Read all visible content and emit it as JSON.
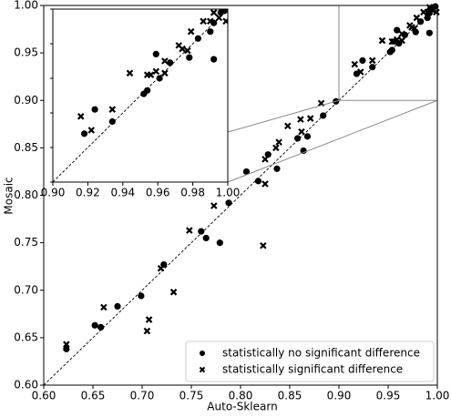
{
  "chart_data": {
    "type": "scatter",
    "x_label": "Auto-Sklearn",
    "y_label": "Mosaic",
    "xlim": [
      0.6,
      1.0
    ],
    "ylim": [
      0.6,
      1.0
    ],
    "xticks": [
      {
        "value": 0.6,
        "label": "0.60"
      },
      {
        "value": 0.65,
        "label": "0.65"
      },
      {
        "value": 0.7,
        "label": "0.70"
      },
      {
        "value": 0.75,
        "label": "0.75"
      },
      {
        "value": 0.8,
        "label": "0.80"
      },
      {
        "value": 0.85,
        "label": "0.85"
      },
      {
        "value": 0.9,
        "label": "0.90"
      },
      {
        "value": 0.95,
        "label": "0.95"
      },
      {
        "value": 1.0,
        "label": "1.00"
      }
    ],
    "yticks": [
      {
        "value": 0.6,
        "label": "0.60"
      },
      {
        "value": 0.65,
        "label": "0.65"
      },
      {
        "value": 0.7,
        "label": "0.70"
      },
      {
        "value": 0.75,
        "label": "0.75"
      },
      {
        "value": 0.8,
        "label": "0.80"
      },
      {
        "value": 0.85,
        "label": "0.85"
      },
      {
        "value": 0.9,
        "label": "0.90"
      },
      {
        "value": 0.95,
        "label": "0.95"
      },
      {
        "value": 1.0,
        "label": "1.00"
      }
    ],
    "legend": "lower right",
    "series": [
      {
        "name": "statistically no significant difference",
        "marker": "circle",
        "color": "#000000",
        "x": [
          0.623,
          0.652,
          0.658,
          0.675,
          0.699,
          0.722,
          0.76,
          0.765,
          0.779,
          0.788,
          0.806,
          0.818,
          0.828,
          0.837,
          0.858,
          0.864,
          0.868,
          0.884,
          0.897,
          0.918,
          0.924,
          0.934,
          0.952,
          0.954,
          0.959,
          0.961,
          0.967,
          0.978,
          0.983,
          0.99,
          0.992,
          0.992,
          0.996,
          0.998
        ],
        "values": [
          0.638,
          0.663,
          0.661,
          0.683,
          0.694,
          0.727,
          0.762,
          0.755,
          0.75,
          0.792,
          0.825,
          0.815,
          0.843,
          0.828,
          0.86,
          0.847,
          0.862,
          0.884,
          0.899,
          0.928,
          0.942,
          0.935,
          0.951,
          0.953,
          0.974,
          0.96,
          0.969,
          0.972,
          0.983,
          0.987,
          0.971,
          0.992,
          0.998,
          0.999
        ]
      },
      {
        "name": "statistically significant difference",
        "marker": "x",
        "color": "#000000",
        "x": [
          0.623,
          0.661,
          0.707,
          0.705,
          0.719,
          0.732,
          0.748,
          0.773,
          0.823,
          0.825,
          0.825,
          0.836,
          0.839,
          0.848,
          0.861,
          0.862,
          0.871,
          0.882,
          0.916,
          0.922,
          0.934,
          0.944,
          0.954,
          0.956,
          0.959,
          0.964,
          0.964,
          0.972,
          0.974,
          0.977,
          0.979,
          0.986,
          0.99,
          0.992,
          0.995,
          0.999
        ],
        "values": [
          0.643,
          0.682,
          0.669,
          0.657,
          0.723,
          0.698,
          0.763,
          0.789,
          0.747,
          0.812,
          0.838,
          0.85,
          0.856,
          0.873,
          0.88,
          0.867,
          0.881,
          0.897,
          0.938,
          0.93,
          0.942,
          0.963,
          0.962,
          0.962,
          0.964,
          0.963,
          0.97,
          0.979,
          0.977,
          0.976,
          0.987,
          0.993,
          0.993,
          0.998,
          0.995,
          0.993
        ]
      }
    ],
    "inset": {
      "xlim": [
        0.9,
        1.0
      ],
      "ylim": [
        0.9,
        1.0
      ],
      "xticks": [
        {
          "value": 0.9,
          "label": "0.90"
        },
        {
          "value": 0.92,
          "label": "0.92"
        },
        {
          "value": 0.94,
          "label": "0.94"
        },
        {
          "value": 0.96,
          "label": "0.96"
        },
        {
          "value": 0.98,
          "label": "0.98"
        },
        {
          "value": 1.0,
          "label": "1.00"
        }
      ],
      "yticks": [
        0.9,
        0.92,
        0.94,
        0.96,
        0.98,
        1.0
      ]
    }
  }
}
